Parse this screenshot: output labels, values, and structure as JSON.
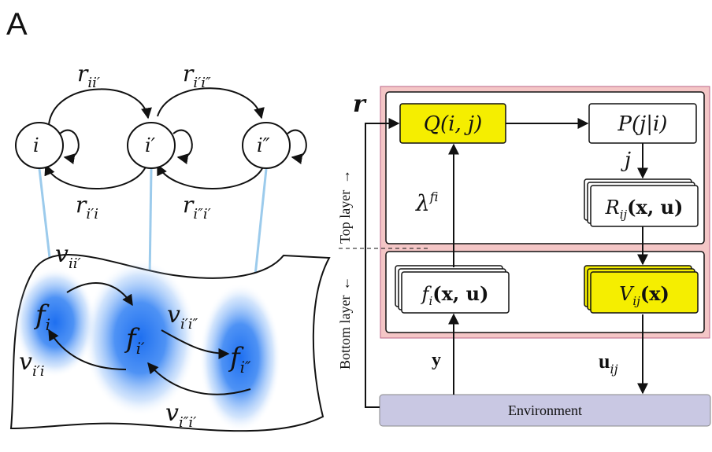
{
  "panel_label": "A",
  "colors": {
    "highlight_box": "#f5ee00",
    "outer_frame": "#f4c6c6",
    "environment": "#c9c8e3",
    "blue_blob": "#1e6ff0",
    "connector": "#9ccbec",
    "ink": "#111111"
  },
  "states": {
    "i": "i",
    "i1": "i′",
    "i2": "i″"
  },
  "transitions": {
    "r_ii1": "r",
    "r_ii1_sub": "ii′",
    "r_i1i2": "r",
    "r_i1i2_sub": "i′i″",
    "r_i1i": "r",
    "r_i1i_sub": "i′i",
    "r_i2i1": "r",
    "r_i2i1_sub": "i″i′"
  },
  "surface": {
    "f_i": "f",
    "f_i_sub": "i",
    "f_i1": "f",
    "f_i1_sub": "i′",
    "f_i2": "f",
    "f_i2_sub": "i″",
    "v_ii1": "v",
    "v_ii1_sub": "ii′",
    "v_i1i2": "v",
    "v_i1i2_sub": "i′i″",
    "v_i1i": "v",
    "v_i1i_sub": "i′i",
    "v_i2i1": "v",
    "v_i2i1_sub": "i″i′"
  },
  "architecture": {
    "r_label": "r",
    "q_box": "Q(i, j)",
    "p_box": "P(j|i)",
    "j_label": "j",
    "r_box": "R",
    "r_box_sub": "ij",
    "r_box_args": "(x, u)",
    "lambda": "λ",
    "lambda_sup": "f",
    "lambda_sub": "i",
    "f_box": "f",
    "f_box_sub": "i",
    "f_box_args": "(x, u)",
    "v_box": "V",
    "v_box_sub": "ij",
    "v_box_args": "(x)",
    "y_label": "y",
    "u_label": "u",
    "u_label_sub": "ij",
    "environment": "Environment",
    "top_layer": "Top layer",
    "bottom_layer": "Bottom layer",
    "arrow_up": "→",
    "arrow_down": "←"
  }
}
